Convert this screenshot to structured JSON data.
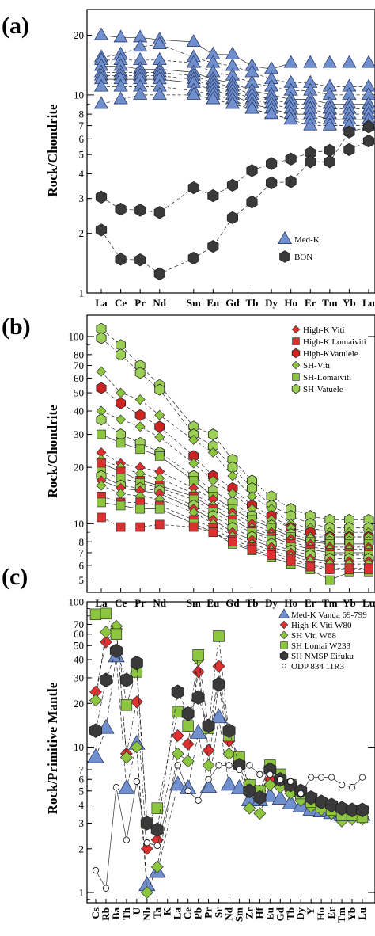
{
  "chart_data": [
    {
      "panel": "(a)",
      "type": "line",
      "log_y": true,
      "ylim": [
        1,
        27
      ],
      "ylabel": "Rock/Chondrite",
      "yticks": [
        1,
        2,
        3,
        4,
        5,
        6,
        7,
        8,
        10,
        20
      ],
      "categories": [
        "La",
        "Ce",
        "Pr",
        "Nd",
        "Sm",
        "Eu",
        "Gd",
        "Tb",
        "Dy",
        "Ho",
        "Er",
        "Tm",
        "Yb",
        "Lu"
      ],
      "legend": [
        "Med-K",
        "BON"
      ],
      "series": [
        {
          "name": "Med-K",
          "marker": "triangle",
          "color": "#6f8fcf",
          "values": [
            20,
            19.5,
            19.5,
            19,
            18.5,
            16,
            16,
            14,
            13.5,
            14.5,
            14.5,
            14.5,
            14.5,
            14.5
          ]
        },
        {
          "name": "Med-K",
          "marker": "triangle",
          "color": "#6f8fcf",
          "values": [
            15.5,
            16,
            17.5,
            18,
            15.5,
            14.5,
            14,
            13,
            12,
            11.5,
            11.5,
            11,
            11,
            11
          ]
        },
        {
          "name": "Med-K",
          "marker": "triangle",
          "color": "#6f8fcf",
          "values": [
            15,
            15,
            15,
            15,
            14.5,
            13,
            12.5,
            11.5,
            11,
            10.5,
            10.5,
            10,
            10,
            10
          ]
        },
        {
          "name": "Med-K",
          "marker": "triangle",
          "color": "#6f8fcf",
          "values": [
            14,
            14,
            13.5,
            13.5,
            13,
            12,
            11.5,
            10.5,
            10,
            9.5,
            9.5,
            9,
            9,
            9
          ]
        },
        {
          "name": "Med-K",
          "marker": "triangle",
          "color": "#6f8fcf",
          "values": [
            13,
            13,
            13,
            13,
            12.5,
            11.5,
            11,
            10,
            9.5,
            9,
            9,
            8.5,
            8.5,
            8.5
          ]
        },
        {
          "name": "Med-K",
          "marker": "triangle",
          "color": "#6f8fcf",
          "values": [
            12.5,
            12.5,
            12.5,
            12.5,
            12,
            11,
            10.5,
            9.5,
            9,
            8.5,
            8.5,
            8,
            8,
            8
          ]
        },
        {
          "name": "Med-K",
          "marker": "triangle",
          "color": "#6f8fcf",
          "values": [
            12,
            12,
            12,
            12,
            11.5,
            10.5,
            10,
            9,
            8.5,
            8,
            8,
            7.5,
            7.5,
            7.5
          ]
        },
        {
          "name": "Med-K",
          "marker": "triangle",
          "color": "#6f8fcf",
          "values": [
            11,
            11,
            11,
            11,
            10.5,
            10,
            9.5,
            8.5,
            8,
            7.5,
            7.5,
            7,
            7,
            7
          ]
        },
        {
          "name": "Med-K",
          "marker": "triangle",
          "color": "#6f8fcf",
          "values": [
            9,
            9.5,
            10,
            10,
            10,
            9.5,
            9,
            8.5,
            8,
            7.5,
            7,
            7,
            7,
            7
          ]
        },
        {
          "name": "BON",
          "marker": "hexagon",
          "color": "#3a3a3a",
          "values": [
            3.05,
            2.65,
            2.62,
            2.55,
            3.4,
            3.1,
            3.5,
            4.15,
            4.5,
            4.75,
            5.1,
            5.25,
            5.3,
            5.85
          ]
        },
        {
          "name": "BON",
          "marker": "hexagon",
          "color": "#3a3a3a",
          "values": [
            2.08,
            1.48,
            1.47,
            1.25,
            1.5,
            1.72,
            2.4,
            2.88,
            3.6,
            3.65,
            4.6,
            4.6,
            6.5,
            6.9
          ]
        }
      ]
    },
    {
      "panel": "(b)",
      "type": "line",
      "log_y": true,
      "ylim": [
        4.3,
        130
      ],
      "ylabel": "Rock/Chondrite",
      "yticks": [
        5,
        6,
        7,
        8,
        10,
        20,
        30,
        40,
        50,
        60,
        70,
        80,
        100
      ],
      "categories": [
        "La",
        "Ce",
        "Pr",
        "Nd",
        "Sm",
        "Eu",
        "Gd",
        "Tb",
        "Dy",
        "Ho",
        "Er",
        "Tm",
        "Yb",
        "Lu"
      ],
      "legend": [
        "High-K Viti",
        "High-K Lomaiviti",
        "High-KVatulele",
        "SH-Viti",
        "SH-Lomaiviti",
        "SH-Vatuele"
      ],
      "series": [
        {
          "name": "SH-Vatuele",
          "marker": "hexagon",
          "color": "#9ccf55",
          "values": [
            110,
            90,
            70,
            55,
            33,
            30,
            22,
            17,
            14,
            12,
            11,
            10.5,
            10.5,
            10.5
          ]
        },
        {
          "name": "SH-Vatuele",
          "marker": "hexagon",
          "color": "#9ccf55",
          "values": [
            98,
            80,
            64,
            52,
            30,
            26,
            20,
            15.5,
            12.5,
            11,
            10,
            9.5,
            9.5,
            9.5
          ]
        },
        {
          "name": "SH-Viti",
          "marker": "diamond",
          "color": "#8cc63f",
          "values": [
            65,
            50,
            46,
            38,
            28,
            24,
            18,
            14,
            12,
            10,
            9.5,
            9,
            9,
            9
          ]
        },
        {
          "name": "High-KVatulele",
          "marker": "hexagon",
          "color": "#cc2222",
          "values": [
            53,
            44,
            38,
            33,
            23,
            18,
            15.5,
            12.5,
            11,
            9.5,
            9,
            8.5,
            8.5,
            8.5
          ]
        },
        {
          "name": "SH-Viti",
          "marker": "diamond",
          "color": "#8cc63f",
          "values": [
            40,
            36,
            33,
            29,
            21,
            17,
            14.5,
            12,
            10.5,
            9.5,
            8.5,
            8.5,
            8.5,
            8.5
          ]
        },
        {
          "name": "SH-Vatuele",
          "marker": "hexagon",
          "color": "#9ccf55",
          "values": [
            36,
            30,
            27,
            24,
            18,
            15,
            13,
            11,
            9.8,
            8.8,
            8.2,
            8,
            8,
            8
          ]
        },
        {
          "name": "SH-Lomaiviti",
          "marker": "square",
          "color": "#8cc63f",
          "values": [
            30,
            27,
            25,
            23,
            17,
            14,
            12,
            10.5,
            9.5,
            8.5,
            8,
            7.8,
            7.8,
            7.8
          ]
        },
        {
          "name": "High-K Viti",
          "marker": "diamond",
          "color": "#e03030",
          "values": [
            24,
            21,
            20,
            19,
            15.5,
            13.5,
            11.5,
            10,
            9,
            8.3,
            7.8,
            7.5,
            7.5,
            7.5
          ]
        },
        {
          "name": "SH-Viti",
          "marker": "diamond",
          "color": "#8cc63f",
          "values": [
            22,
            20,
            18.5,
            17.5,
            14.5,
            12.5,
            11,
            9.5,
            8.7,
            8,
            7.5,
            7.3,
            7.3,
            7.3
          ]
        },
        {
          "name": "High-K Lomaiviti",
          "marker": "square",
          "color": "#d93030",
          "values": [
            21,
            19,
            17,
            16,
            14,
            12,
            10.5,
            9.2,
            8.5,
            7.8,
            7.3,
            7,
            7,
            7
          ]
        },
        {
          "name": "SH-Lomaiviti",
          "marker": "square",
          "color": "#8cc63f",
          "values": [
            19,
            17.5,
            16.5,
            15.5,
            13.5,
            11.5,
            10,
            9,
            8.2,
            7.5,
            7,
            6.8,
            6.8,
            6.8
          ]
        },
        {
          "name": "SH-Vatuele",
          "marker": "hexagon",
          "color": "#9ccf55",
          "values": [
            18,
            16,
            15.5,
            15,
            12.5,
            11,
            9.5,
            8.5,
            7.8,
            7.2,
            6.8,
            6.5,
            6.5,
            6.5
          ]
        },
        {
          "name": "High-K Viti",
          "marker": "diamond",
          "color": "#e03030",
          "values": [
            17,
            15.5,
            15,
            14.5,
            12,
            10.5,
            9,
            8.2,
            7.5,
            7,
            6.5,
            6.3,
            6.3,
            6.3
          ]
        },
        {
          "name": "SH-Viti",
          "marker": "diamond",
          "color": "#8cc63f",
          "values": [
            16,
            14.5,
            14,
            13.5,
            11.5,
            10,
            8.6,
            7.8,
            7.2,
            6.7,
            6.3,
            6.1,
            6.1,
            6.1
          ]
        },
        {
          "name": "High-K Lomaiviti",
          "marker": "square",
          "color": "#d93030",
          "values": [
            14,
            13,
            13,
            12.5,
            10.5,
            9.5,
            8.2,
            7.5,
            7,
            6.5,
            6,
            5.8,
            5.8,
            5.8
          ]
        },
        {
          "name": "SH-Lomaiviti",
          "marker": "square",
          "color": "#8cc63f",
          "values": [
            13,
            12.5,
            12,
            12,
            10,
            9,
            7.8,
            7.2,
            6.6,
            6.1,
            5.7,
            5,
            5.5,
            5.5
          ]
        },
        {
          "name": "High-K Lomaiviti",
          "marker": "square",
          "color": "#d93030",
          "values": [
            10.8,
            9.6,
            9.6,
            9.9,
            9.6,
            9,
            8,
            7.3,
            6.8,
            6.3,
            5.9,
            5.7,
            5.7,
            5.7
          ]
        }
      ]
    },
    {
      "panel": "(c)",
      "type": "line",
      "log_y": true,
      "ylim": [
        0.85,
        100
      ],
      "ylabel": "Rock/Primitive Mantle",
      "yticks": [
        1,
        2,
        3,
        4,
        5,
        6,
        7,
        10,
        20,
        30,
        40,
        50,
        60,
        70,
        100
      ],
      "categories": [
        "Cs",
        "Rb",
        "Ba",
        "Th",
        "U",
        "Nb",
        "Ta",
        "K",
        "La",
        "Ce",
        "Pb",
        "Pr",
        "Sr",
        "Nd",
        "Sm",
        "Zr",
        "Hf",
        "Eu",
        "Gd",
        "Tb",
        "Dy",
        "Y",
        "Ho",
        "Er",
        "Tm",
        "Yb",
        "Lu"
      ],
      "legend": [
        "Med-K Vanua 69-799",
        "High-K Viti W80",
        "SH Viti W68",
        "SH Lomai W233",
        "SH NMSP Eifuku",
        "ODP 834 11R3"
      ],
      "series": [
        {
          "name": "Med-K Vanua 69-799",
          "marker": "triangle",
          "color": "#6f8fcf",
          "values": [
            8.5,
            13.5,
            42,
            5.2,
            10.5,
            1.12,
            1.38,
            null,
            5.5,
            5.2,
            12.5,
            5.3,
            16,
            5.5,
            5.2,
            4.3,
            4.3,
            4.6,
            4.4,
            4.1,
            3.9,
            3.7,
            3.6,
            3.5,
            3.4,
            3.4,
            3.4
          ]
        },
        {
          "name": "High-K Viti W80",
          "marker": "diamond",
          "color": "#e03030",
          "values": [
            24,
            53,
            65,
            9,
            20.5,
            2,
            2.3,
            null,
            12,
            10.5,
            33,
            9.5,
            36,
            11,
            8,
            5.5,
            5,
            6,
            5.6,
            5,
            4.6,
            4.2,
            4,
            3.8,
            3.7,
            3.6,
            3.6
          ]
        },
        {
          "name": "SH Viti W68",
          "marker": "diamond",
          "color": "#8cc63f",
          "values": [
            21,
            62,
            68,
            8.5,
            10,
            1,
            1.5,
            null,
            9,
            8,
            40,
            7.5,
            28,
            9,
            7.5,
            3.8,
            3.5,
            5.5,
            5.3,
            4.8,
            4.3,
            3.9,
            3.7,
            3.5,
            3.1,
            3.2,
            3.2
          ]
        },
        {
          "name": "SH Lomai W233",
          "marker": "square",
          "color": "#8cc63f",
          "values": [
            82,
            83,
            60,
            19.5,
            33,
            3,
            3.8,
            null,
            17.5,
            14,
            43,
            13.5,
            58,
            12,
            8.5,
            5.5,
            5,
            7.5,
            6.5,
            5.5,
            4.8,
            4.2,
            3.9,
            3.7,
            3.4,
            3.4,
            3.3
          ]
        },
        {
          "name": "SH NMSP Eifuku",
          "marker": "hexagon",
          "color": "#3a3a3a",
          "values": [
            13,
            29,
            46,
            29,
            38,
            3,
            2.7,
            null,
            24,
            17,
            22,
            14,
            27,
            13,
            7.5,
            5,
            4.5,
            7,
            6,
            5.5,
            5,
            4.5,
            4.2,
            4,
            3.8,
            3.7,
            3.7
          ]
        },
        {
          "name": "ODP 834 11R3",
          "marker": "circle",
          "color": "#ffffff",
          "values": [
            1.42,
            1.07,
            5.3,
            2.3,
            5.8,
            2.2,
            2.1,
            null,
            7.5,
            5,
            4.3,
            6,
            7.5,
            7.5,
            7,
            7.5,
            6.5,
            6.5,
            6,
            5.8,
            4.8,
            6.2,
            6.2,
            6.2,
            5.5,
            5.3,
            6.2
          ]
        }
      ]
    }
  ]
}
